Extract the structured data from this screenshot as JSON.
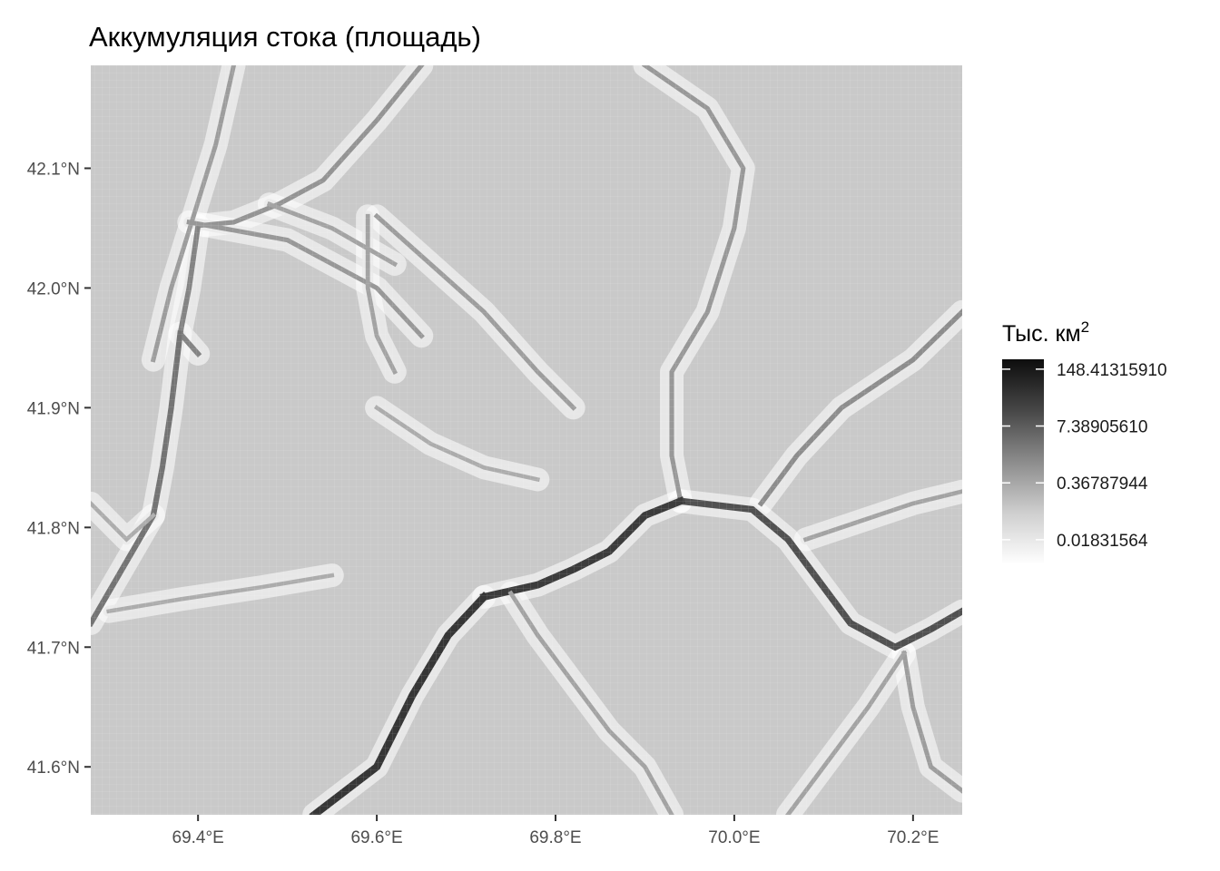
{
  "chart_data": {
    "type": "heatmap",
    "title": "Аккумуляция стока (площадь)",
    "xlabel": "",
    "ylabel": "",
    "x_ticks": [
      "69.4°E",
      "69.6°E",
      "69.8°E",
      "70.0°E",
      "70.2°E"
    ],
    "x_tick_values": [
      69.4,
      69.6,
      69.8,
      70.0,
      70.2
    ],
    "y_ticks": [
      "42.1°N",
      "42.0°N",
      "41.9°N",
      "41.8°N",
      "41.7°N",
      "41.6°N"
    ],
    "y_tick_values": [
      42.1,
      42.0,
      41.9,
      41.8,
      41.7,
      41.6
    ],
    "xlim": [
      69.28,
      70.255
    ],
    "ylim": [
      41.56,
      42.186
    ],
    "grid": false,
    "background_color": "#ffffff",
    "color_scale": {
      "type": "grayscale-log",
      "low_color": "#ffffff",
      "high_color": "#0d0d0d"
    },
    "legend": {
      "title": "Тыс. км",
      "title_superscript": "2",
      "position": "right",
      "labels": [
        "148.41315910",
        "7.38905610",
        "0.36787944",
        "0.01831564"
      ],
      "values": [
        148.4131591,
        7.3890561,
        0.36787944,
        0.01831564
      ],
      "range": [
        0.005,
        250
      ]
    },
    "stream_network": [
      {
        "name": "",
        "value": 0.4,
        "points": [
          [
            69.44,
            42.186
          ],
          [
            69.42,
            42.12
          ],
          [
            69.395,
            42.06
          ],
          [
            69.37,
            42.0
          ],
          [
            69.35,
            41.94
          ]
        ]
      },
      {
        "name": "",
        "value": 0.6,
        "points": [
          [
            69.65,
            42.186
          ],
          [
            69.6,
            42.14
          ],
          [
            69.54,
            42.09
          ],
          [
            69.49,
            42.07
          ],
          [
            69.44,
            42.055
          ],
          [
            69.4,
            42.052
          ]
        ]
      },
      {
        "name": "",
        "value": 1.2,
        "points": [
          [
            69.4,
            42.052
          ],
          [
            69.39,
            42.0
          ],
          [
            69.38,
            41.962
          ],
          [
            69.4,
            41.945
          ]
        ]
      },
      {
        "name": "",
        "value": 2.5,
        "points": [
          [
            69.38,
            41.962
          ],
          [
            69.37,
            41.9
          ],
          [
            69.36,
            41.85
          ],
          [
            69.35,
            41.81
          ],
          [
            69.28,
            41.72
          ]
        ]
      },
      {
        "name": "",
        "value": 0.5,
        "points": [
          [
            69.39,
            42.055
          ],
          [
            69.5,
            42.04
          ],
          [
            69.6,
            42.0
          ],
          [
            69.65,
            41.96
          ]
        ]
      },
      {
        "name": "",
        "value": 0.3,
        "points": [
          [
            69.48,
            42.07
          ],
          [
            69.55,
            42.05
          ],
          [
            69.62,
            42.02
          ]
        ]
      },
      {
        "name": "",
        "value": 0.4,
        "points": [
          [
            69.6,
            42.06
          ],
          [
            69.66,
            42.02
          ],
          [
            69.72,
            41.98
          ],
          [
            69.78,
            41.93
          ],
          [
            69.82,
            41.9
          ]
        ]
      },
      {
        "name": "",
        "value": 0.3,
        "points": [
          [
            69.59,
            42.06
          ],
          [
            69.59,
            42.0
          ],
          [
            69.6,
            41.96
          ],
          [
            69.62,
            41.93
          ]
        ]
      },
      {
        "name": "",
        "value": 0.5,
        "points": [
          [
            69.9,
            42.186
          ],
          [
            69.97,
            42.15
          ],
          [
            70.01,
            42.1
          ],
          [
            70.0,
            42.05
          ],
          [
            69.97,
            41.98
          ],
          [
            69.93,
            41.93
          ],
          [
            69.93,
            41.86
          ],
          [
            69.94,
            41.822
          ]
        ]
      },
      {
        "name": "",
        "value": 0.8,
        "points": [
          [
            70.255,
            41.98
          ],
          [
            70.2,
            41.94
          ],
          [
            70.12,
            41.9
          ],
          [
            70.07,
            41.86
          ],
          [
            70.03,
            41.82
          ]
        ]
      },
      {
        "name": "",
        "value": 12.0,
        "points": [
          [
            69.94,
            41.822
          ],
          [
            70.02,
            41.815
          ],
          [
            70.06,
            41.79
          ],
          [
            70.1,
            41.75
          ],
          [
            70.13,
            41.72
          ],
          [
            70.18,
            41.7
          ],
          [
            70.22,
            41.715
          ],
          [
            70.255,
            41.73
          ]
        ]
      },
      {
        "name": "",
        "value": 30.0,
        "points": [
          [
            69.94,
            41.822
          ],
          [
            69.9,
            41.81
          ],
          [
            69.86,
            41.78
          ],
          [
            69.82,
            41.765
          ],
          [
            69.78,
            41.752
          ],
          [
            69.72,
            41.742
          ]
        ]
      },
      {
        "name": "",
        "value": 40.0,
        "points": [
          [
            69.72,
            41.742
          ],
          [
            69.68,
            41.71
          ],
          [
            69.64,
            41.66
          ],
          [
            69.6,
            41.6
          ],
          [
            69.53,
            41.56
          ]
        ]
      },
      {
        "name": "",
        "value": 0.3,
        "points": [
          [
            69.75,
            41.745
          ],
          [
            69.78,
            41.71
          ],
          [
            69.82,
            41.67
          ],
          [
            69.86,
            41.63
          ],
          [
            69.9,
            41.6
          ],
          [
            69.93,
            41.56
          ]
        ]
      },
      {
        "name": "",
        "value": 0.4,
        "points": [
          [
            70.19,
            41.695
          ],
          [
            70.2,
            41.65
          ],
          [
            70.22,
            41.6
          ],
          [
            70.255,
            41.58
          ]
        ]
      },
      {
        "name": "",
        "value": 0.3,
        "points": [
          [
            70.19,
            41.695
          ],
          [
            70.15,
            41.65
          ],
          [
            70.1,
            41.6
          ],
          [
            70.06,
            41.56
          ]
        ]
      },
      {
        "name": "",
        "value": 0.3,
        "points": [
          [
            70.08,
            41.79
          ],
          [
            70.12,
            41.8
          ],
          [
            70.2,
            41.82
          ],
          [
            70.255,
            41.83
          ]
        ]
      },
      {
        "name": "",
        "value": 0.2,
        "points": [
          [
            69.28,
            41.82
          ],
          [
            69.32,
            41.79
          ],
          [
            69.35,
            41.81
          ]
        ]
      },
      {
        "name": "",
        "value": 0.2,
        "points": [
          [
            69.6,
            41.9
          ],
          [
            69.66,
            41.87
          ],
          [
            69.72,
            41.85
          ],
          [
            69.78,
            41.84
          ]
        ]
      },
      {
        "name": "",
        "value": 0.2,
        "points": [
          [
            69.3,
            41.73
          ],
          [
            69.38,
            41.74
          ],
          [
            69.47,
            41.75
          ],
          [
            69.55,
            41.76
          ]
        ]
      }
    ]
  }
}
